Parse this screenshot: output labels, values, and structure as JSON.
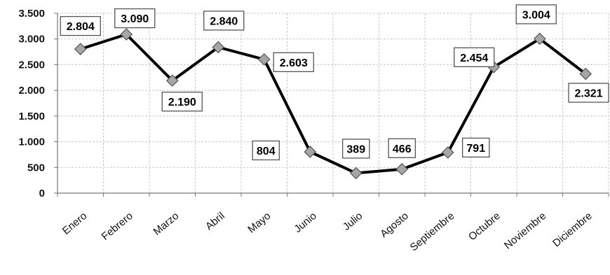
{
  "chart_data": {
    "type": "line",
    "title": "",
    "xlabel": "",
    "ylabel": "",
    "categories": [
      "Enero",
      "Febrero",
      "Marzo",
      "Abril",
      "Mayo",
      "Junio",
      "Julio",
      "Agosto",
      "Septiembre",
      "Octubre",
      "Noviembre",
      "Diciembre"
    ],
    "values": [
      2804,
      3090,
      2190,
      2840,
      2603,
      804,
      389,
      466,
      791,
      2454,
      3004,
      2321
    ],
    "data_labels": [
      "2.804",
      "3.090",
      "2.190",
      "2.840",
      "2.603",
      "804",
      "389",
      "466",
      "791",
      "2.454",
      "3.004",
      "2.321"
    ],
    "ylim": [
      0,
      3500
    ],
    "yticks": [
      0,
      500,
      1000,
      1500,
      2000,
      2500,
      3000,
      3500
    ],
    "ytick_labels": [
      "0",
      "500",
      "1.000",
      "1.500",
      "2.000",
      "2.500",
      "3.000",
      "3.500"
    ],
    "grid": true,
    "legend": "none",
    "colors": {
      "line": "#000000",
      "marker_fill": "#a6a6a6",
      "marker_stroke": "#555555",
      "grid": "#c8c8c8",
      "label_border": "#555555"
    }
  }
}
